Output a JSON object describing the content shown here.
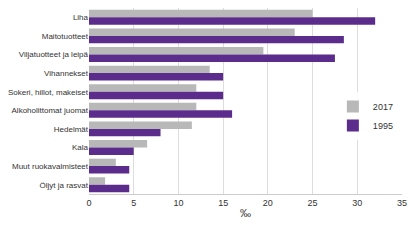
{
  "chart_data": {
    "type": "bar",
    "orientation": "horizontal",
    "categories": [
      "Liha",
      "Maitotuotteet",
      "Viljatuotteet ja leipä",
      "Vihannekset",
      "Sokeri, hillot, makeiset",
      "Alkoholittomat juomat",
      "Hedelmät",
      "Kala",
      "Muut ruokavalmisteet",
      "Öljyt ja rasvat"
    ],
    "series": [
      {
        "name": "2017",
        "color": "#b8b8b8",
        "values": [
          25.0,
          23.0,
          19.5,
          13.5,
          12.0,
          12.0,
          11.5,
          6.5,
          3.0,
          1.8
        ]
      },
      {
        "name": "1995",
        "color": "#5b2c8c",
        "values": [
          32.0,
          28.5,
          27.5,
          15.0,
          15.0,
          16.0,
          8.0,
          5.0,
          4.5,
          4.5
        ]
      }
    ],
    "xlabel": "‰",
    "xlim": [
      0,
      35
    ],
    "xticks": [
      0,
      5,
      10,
      15,
      20,
      25,
      30,
      35
    ],
    "grid": true,
    "legend": "center right"
  }
}
